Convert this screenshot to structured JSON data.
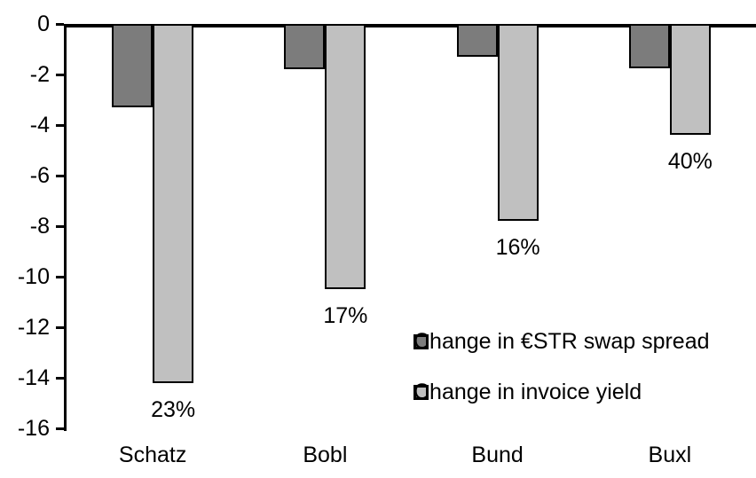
{
  "chart_data": {
    "type": "bar",
    "orientation": "vertical",
    "categories": [
      "Schatz",
      "Bobl",
      "Bund",
      "Buxl"
    ],
    "series": [
      {
        "name": "Change in €STR swap spread",
        "color": "#7c7c7c",
        "values": [
          -3.3,
          -1.8,
          -1.3,
          -1.75
        ]
      },
      {
        "name": "Change in invoice yield",
        "color": "#c0c0c0",
        "values": [
          -14.2,
          -10.5,
          -7.8,
          -4.4
        ]
      }
    ],
    "bar_labels": {
      "series_index": 1,
      "values": [
        "23%",
        "17%",
        "16%",
        "40%"
      ]
    },
    "yticks": [
      0,
      -2,
      -4,
      -6,
      -8,
      -10,
      -12,
      -14,
      -16
    ],
    "ylim": [
      -16,
      0
    ],
    "grid": false,
    "legend_position": "inside-center-right",
    "axis_color": "#000000",
    "bar_border_color": "#000000",
    "background": "#ffffff"
  }
}
